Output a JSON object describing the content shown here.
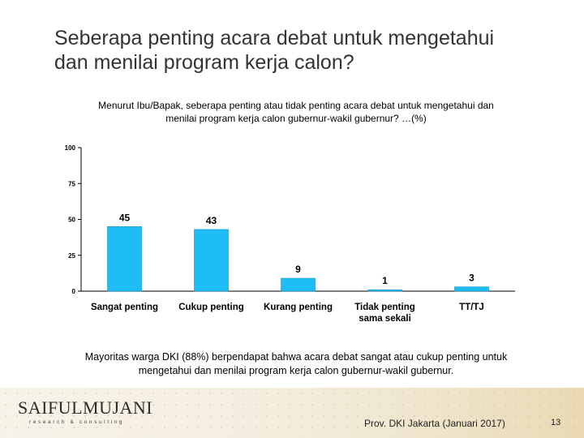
{
  "slide": {
    "title_line1": "Seberapa penting acara debat untuk mengetahui",
    "title_line2": "dan menilai program kerja calon?",
    "question_line1": "Menurut Ibu/Bapak, seberapa penting atau tidak penting acara debat untuk mengetahui dan",
    "question_line2": "menilai program kerja calon gubernur-wakil gubernur? …(%)",
    "conclusion_line1": "Mayoritas warga DKI (88%) berpendapat bahwa acara debat sangat atau cukup penting untuk",
    "conclusion_line2": "mengetahui dan menilai program kerja calon gubernur-wakil gubernur.",
    "logo_main": "SAIFULMUJANI",
    "logo_sub": "research & consulting",
    "source": "Prov. DKI Jakarta (Januari 2017)",
    "page_number": "13"
  },
  "chart_data": {
    "type": "bar",
    "categories": [
      [
        "Sangat penting"
      ],
      [
        "Cukup penting"
      ],
      [
        "Kurang penting"
      ],
      [
        "Tidak penting",
        "sama sekali"
      ],
      [
        "TT/TJ"
      ]
    ],
    "values": [
      45,
      43,
      9,
      1,
      3
    ],
    "ylim": [
      0,
      100
    ],
    "yticks": [
      0,
      25,
      50,
      75,
      100
    ],
    "bar_color": "#1ebdf5",
    "bar_border_color": "#1a8fc0",
    "axis_color": "#000000",
    "grid": false,
    "legend": "none"
  }
}
